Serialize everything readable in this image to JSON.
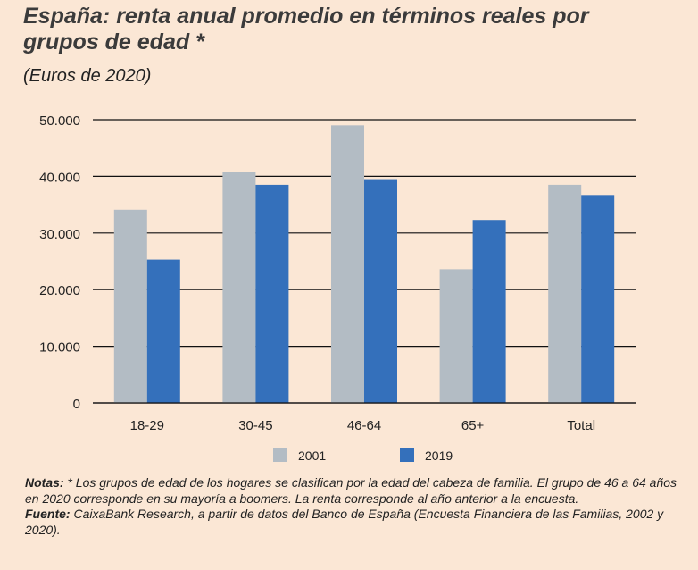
{
  "chart_data": {
    "type": "bar",
    "title": "España: renta anual promedio en términos reales por grupos de edad *",
    "subtitle": "(Euros de 2020)",
    "categories": [
      "18-29",
      "30-45",
      "46-64",
      "65+",
      "Total"
    ],
    "series": [
      {
        "name": "2001",
        "color": "#b3bcc4",
        "values": [
          34100,
          40700,
          49000,
          23600,
          38500
        ]
      },
      {
        "name": "2019",
        "color": "#3470bb",
        "values": [
          25300,
          38500,
          39500,
          32300,
          36700
        ]
      }
    ],
    "ylim": [
      0,
      50000
    ],
    "yticks": [
      0,
      10000,
      20000,
      30000,
      40000,
      50000
    ],
    "ytick_labels": [
      "0",
      "10.000",
      "20.000",
      "30.000",
      "40.000",
      "50.000"
    ],
    "grid": true,
    "legend": "bottom",
    "xlabel": "",
    "ylabel": ""
  },
  "notes": {
    "notes_label": "Notas:",
    "notes_text": " * Los grupos de edad de los hogares se clasifican por la edad del cabeza de familia. El grupo de 46 a 64 años en 2020 corresponde en su mayoría a boomers. La renta corresponde al año anterior a la encuesta.",
    "source_label": "Fuente:",
    "source_text": " CaixaBank Research, a partir de datos del Banco de España (Encuesta Financiera de las Familias, 2002 y 2020)."
  }
}
